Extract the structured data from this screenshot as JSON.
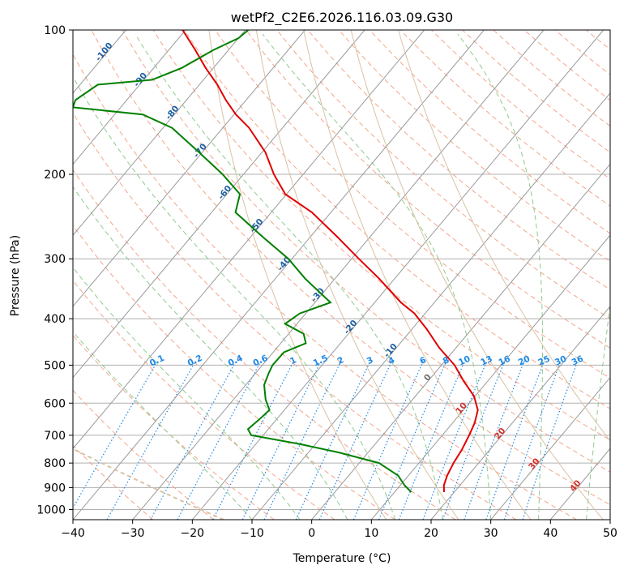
{
  "chart_data": {
    "type": "line",
    "title": "wetPf2_C2E6.2026.116.03.09.G30",
    "xlabel": "Temperature (°C)",
    "ylabel": "Pressure (hPa)",
    "xlim": [
      -40,
      50
    ],
    "ylim": [
      1050,
      100
    ],
    "y_scale": "log",
    "grid": true,
    "x_ticks": [
      "−40",
      "−30",
      "−20",
      "−10",
      "0",
      "10",
      "20",
      "30",
      "40",
      "50"
    ],
    "y_ticks": [
      "100",
      "200",
      "300",
      "400",
      "500",
      "600",
      "700",
      "800",
      "900",
      "1000"
    ],
    "series": [
      {
        "color": "#e00000",
        "points": [
          {
            "p": 920,
            "t": 18.3
          },
          {
            "p": 890,
            "t": 17.3
          },
          {
            "p": 850,
            "t": 16.5
          },
          {
            "p": 800,
            "t": 15.8
          },
          {
            "p": 750,
            "t": 15.3
          },
          {
            "p": 700,
            "t": 14.5
          },
          {
            "p": 660,
            "t": 13.7
          },
          {
            "p": 620,
            "t": 12.4
          },
          {
            "p": 580,
            "t": 9.8
          },
          {
            "p": 540,
            "t": 6.0
          },
          {
            "p": 500,
            "t": 2.2
          },
          {
            "p": 460,
            "t": -2.8
          },
          {
            "p": 420,
            "t": -7.6
          },
          {
            "p": 390,
            "t": -11.8
          },
          {
            "p": 370,
            "t": -15.6
          },
          {
            "p": 330,
            "t": -22.6
          },
          {
            "p": 300,
            "t": -28.8
          },
          {
            "p": 270,
            "t": -35.5
          },
          {
            "p": 240,
            "t": -43.2
          },
          {
            "p": 220,
            "t": -50.2
          },
          {
            "p": 200,
            "t": -54.9
          },
          {
            "p": 180,
            "t": -59.4
          },
          {
            "p": 160,
            "t": -65.6
          },
          {
            "p": 150,
            "t": -69.7
          },
          {
            "p": 140,
            "t": -73.4
          },
          {
            "p": 130,
            "t": -77.0
          },
          {
            "p": 120,
            "t": -81.3
          },
          {
            "p": 110,
            "t": -85.6
          },
          {
            "p": 100,
            "t": -90.5
          }
        ]
      },
      {
        "color": "#008000",
        "points": [
          {
            "p": 920,
            "t": 12.8
          },
          {
            "p": 890,
            "t": 10.7
          },
          {
            "p": 850,
            "t": 8.3
          },
          {
            "p": 800,
            "t": 3.3
          },
          {
            "p": 760,
            "t": -5.0
          },
          {
            "p": 730,
            "t": -12.7
          },
          {
            "p": 700,
            "t": -22.0
          },
          {
            "p": 680,
            "t": -23.4
          },
          {
            "p": 650,
            "t": -22.9
          },
          {
            "p": 620,
            "t": -22.5
          },
          {
            "p": 590,
            "t": -24.6
          },
          {
            "p": 550,
            "t": -26.9
          },
          {
            "p": 520,
            "t": -27.8
          },
          {
            "p": 500,
            "t": -28.3
          },
          {
            "p": 470,
            "t": -28.2
          },
          {
            "p": 450,
            "t": -25.8
          },
          {
            "p": 430,
            "t": -27.5
          },
          {
            "p": 410,
            "t": -32.0
          },
          {
            "p": 390,
            "t": -31.0
          },
          {
            "p": 370,
            "t": -27.4
          },
          {
            "p": 330,
            "t": -35.0
          },
          {
            "p": 300,
            "t": -40.6
          },
          {
            "p": 270,
            "t": -48.0
          },
          {
            "p": 240,
            "t": -56.0
          },
          {
            "p": 220,
            "t": -57.8
          },
          {
            "p": 200,
            "t": -63.5
          },
          {
            "p": 180,
            "t": -70.5
          },
          {
            "p": 160,
            "t": -78.5
          },
          {
            "p": 150,
            "t": -85.3
          },
          {
            "p": 145,
            "t": -98.0
          },
          {
            "p": 140,
            "t": -98.6
          },
          {
            "p": 130,
            "t": -97.0
          },
          {
            "p": 127,
            "t": -88.6
          },
          {
            "p": 120,
            "t": -85.3
          },
          {
            "p": 110,
            "t": -82.5
          },
          {
            "p": 104,
            "t": -80.0
          },
          {
            "p": 100,
            "t": -79.5
          }
        ]
      }
    ],
    "isotherm_labels": [
      {
        "text": "-100",
        "t": -100,
        "p": 112
      },
      {
        "text": "-90",
        "t": -90,
        "p": 128
      },
      {
        "text": "-80",
        "t": -80,
        "p": 150
      },
      {
        "text": "-70",
        "t": -70,
        "p": 180
      },
      {
        "text": "-60",
        "t": -60,
        "p": 220
      },
      {
        "text": "-50",
        "t": -50,
        "p": 258
      },
      {
        "text": "-40",
        "t": -40,
        "p": 310
      },
      {
        "text": "-30",
        "t": -30,
        "p": 360
      },
      {
        "text": "-20",
        "t": -20,
        "p": 420
      },
      {
        "text": "-10",
        "t": -10,
        "p": 470
      },
      {
        "text": "0",
        "t": 0,
        "p": 535
      },
      {
        "text": "10",
        "t": 10,
        "p": 620
      },
      {
        "text": "20",
        "t": 20,
        "p": 700
      },
      {
        "text": "30",
        "t": 30,
        "p": 810
      },
      {
        "text": "40",
        "t": 40,
        "p": 900
      }
    ],
    "mixing_ratio_labels": [
      "0.1",
      "0.2",
      "0.4",
      "0.6",
      "1",
      "1.5",
      "2",
      "3",
      "4",
      "6",
      "8",
      "10",
      "13",
      "16",
      "20",
      "25",
      "30",
      "36"
    ],
    "colors": {
      "temperature": "#e00000",
      "dewpoint": "#008000",
      "isotherm_label": "#1f5fa0",
      "isotherm_label_zero": "#707070",
      "isotherm_label_warm": "#d03030",
      "mixing_ratio": "#1e88e5",
      "dry_adiabat": "#f4a58a",
      "moist_adiabat": "#8fca8f",
      "grid": "#b0b0b0",
      "skew_line": "#9a9a9a",
      "special_curve": "#d9c2a3"
    }
  }
}
